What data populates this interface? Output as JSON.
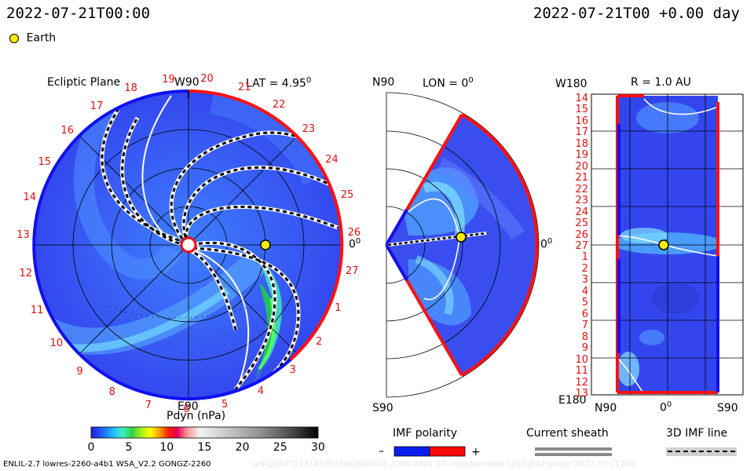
{
  "header": {
    "time_left": "2022-07-21T00:00",
    "time_right": "2022-07-21T00 +0.00 day",
    "earth_label": "Earth"
  },
  "panel_ecliptic": {
    "title": "Ecliptic Plane",
    "top_label": "W90",
    "lat_label": "LAT = 4.95",
    "lat_deg_sup": "0",
    "right_label": "0",
    "right_deg_sup": "0",
    "bottom_label": "E90",
    "rotation_numbers": [
      "19",
      "20",
      "21",
      "22",
      "23",
      "24",
      "25",
      "26",
      "27",
      "1",
      "2",
      "3",
      "4",
      "5",
      "6",
      "7",
      "8",
      "9",
      "10",
      "11",
      "12",
      "13",
      "14",
      "15",
      "16",
      "17",
      "18"
    ]
  },
  "panel_meridional": {
    "top_left": "N90",
    "lon_label": "LON = 0",
    "lon_deg_sup": "0",
    "right_label": "0",
    "right_deg_sup": "0",
    "bottom_left": "S90"
  },
  "panel_sphere": {
    "top_left": "W180",
    "r_label": "R = 1.0 AU",
    "bottom_left": "E180",
    "x_labels": [
      "N90",
      "0",
      "S90"
    ],
    "x_deg_sup": "0",
    "y_labels": [
      "14",
      "15",
      "16",
      "17",
      "18",
      "19",
      "20",
      "21",
      "22",
      "23",
      "24",
      "25",
      "26",
      "27",
      "1",
      "2",
      "3",
      "4",
      "5",
      "6",
      "7",
      "8",
      "9",
      "10",
      "11",
      "12",
      "13"
    ]
  },
  "colorbar": {
    "label": "Pdyn (nPa)",
    "ticks": [
      "0",
      "5",
      "10",
      "15",
      "20",
      "25",
      "30"
    ],
    "range": [
      0,
      30
    ]
  },
  "legend": {
    "imf_title": "IMF polarity",
    "imf_minus": "–",
    "imf_plus": "+",
    "sheath_title": "Current sheath",
    "imf3d_title": "3D IMF line",
    "colors": {
      "negative": "#0b1cf0",
      "positive": "#ff0a0a",
      "sheath": "#8a8a8a"
    }
  },
  "footer": {
    "left": "ENLIL-2.7 lowres-2260-a4b1 WSA_V2.2 GONGZ-2260",
    "right_watermark": "UNIQUE07213145/3/256x30x90x1.2260-a4b1.20--nceplannrled-1g53q5d2.gongz-2022-07-21T00"
  },
  "chart_data": {
    "type": "heatmap",
    "title": "",
    "variable": "Pdyn (nPa)",
    "value_range": [
      0,
      30
    ],
    "earth": {
      "distance_AU": 1.0,
      "lat_deg": 4.95,
      "lon_deg": 0
    },
    "panels": [
      "Ecliptic Plane",
      "LON = 0",
      "R = 1.0 AU"
    ],
    "grid": true,
    "legend": "bottom"
  }
}
